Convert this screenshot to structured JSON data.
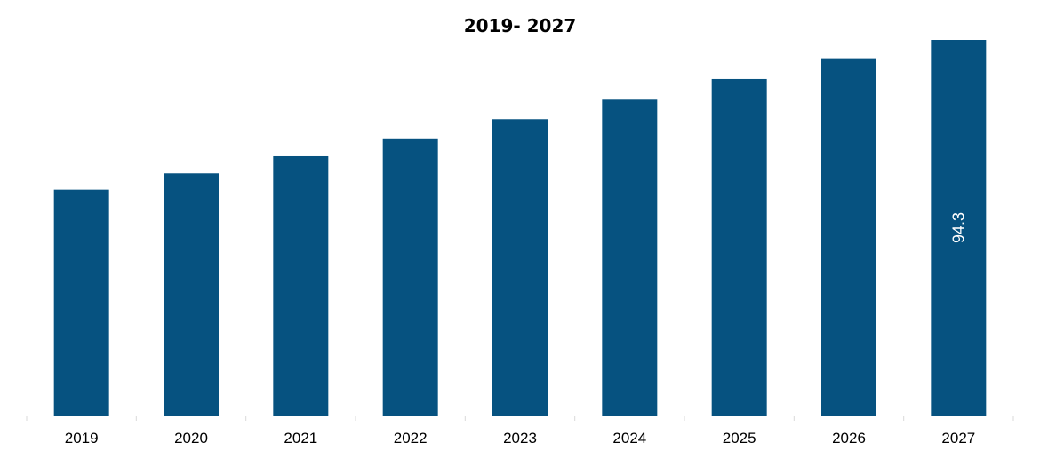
{
  "chart_data": {
    "type": "bar",
    "title": "2019- 2027",
    "xlabel": "",
    "ylabel": "",
    "categories": [
      "2019",
      "2020",
      "2021",
      "2022",
      "2023",
      "2024",
      "2025",
      "2026",
      "2027"
    ],
    "values": [
      56.7,
      60.8,
      65.1,
      69.6,
      74.4,
      79.3,
      84.5,
      89.7,
      94.3
    ],
    "data_labels": [
      "",
      "",
      "",
      "",
      "",
      "",
      "",
      "",
      "94.3"
    ],
    "ylim": [
      0,
      100
    ],
    "grid": false,
    "legend": "none",
    "bar_color": "#065280"
  }
}
